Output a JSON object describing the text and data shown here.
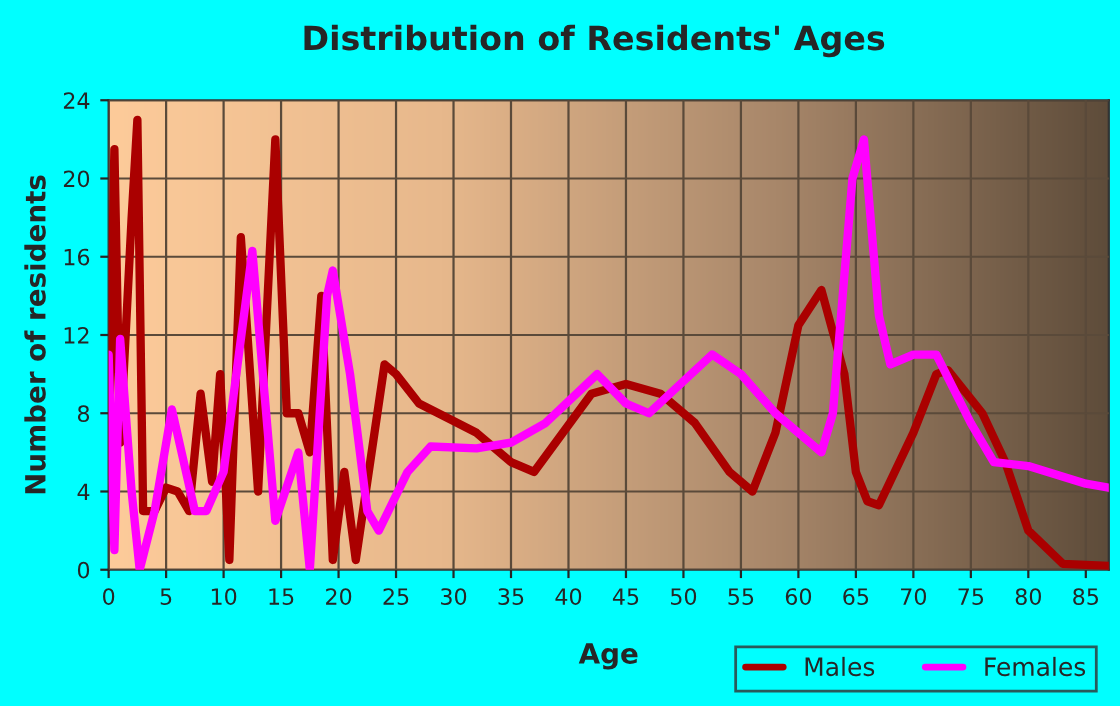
{
  "chart_data": {
    "type": "line",
    "title": "Distribution of Residents' Ages",
    "xlabel": "Age",
    "ylabel": "Number of residents",
    "xlim": [
      0,
      87
    ],
    "xticks": [
      0,
      5,
      10,
      15,
      20,
      25,
      30,
      35,
      40,
      45,
      50,
      55,
      60,
      65,
      70,
      75,
      80,
      85
    ],
    "ylim": [
      0,
      24
    ],
    "yticks": [
      0,
      4,
      8,
      12,
      16,
      20,
      24
    ],
    "grid": true,
    "legend": "bottom right",
    "marker": "none",
    "line_style": "solid",
    "series": [
      {
        "name": "Males",
        "color": "#aa0000",
        "x": [
          0,
          0.5,
          1,
          2,
          2.5,
          3,
          4,
          5,
          6,
          7,
          8,
          9,
          9.7,
          10.5,
          11.5,
          13,
          14.5,
          15.5,
          16.5,
          17.5,
          18.5,
          19.5,
          20.5,
          21.5,
          24,
          25,
          27,
          30,
          32,
          35,
          37,
          42,
          45,
          48,
          51,
          54,
          56,
          58,
          60,
          62,
          64,
          65,
          66,
          67,
          70,
          72,
          73,
          76,
          78,
          80,
          83,
          87
        ],
        "values": [
          5,
          21.5,
          6.5,
          18,
          23,
          3,
          3,
          4.2,
          4,
          3,
          9,
          4.5,
          10,
          0.5,
          17,
          4,
          22,
          8,
          8,
          6,
          14,
          0.5,
          5,
          0.5,
          10.5,
          10,
          8.5,
          7.6,
          7,
          5.5,
          5,
          9,
          9.5,
          9,
          7.5,
          5,
          4,
          7,
          12.5,
          14.3,
          10,
          5,
          3.5,
          3.3,
          7,
          10,
          10.2,
          8,
          5.5,
          2,
          0.3,
          0.2
        ]
      },
      {
        "name": "Females",
        "color": "#ff00ff",
        "x": [
          0,
          0.5,
          1,
          2,
          2.7,
          4,
          5.5,
          7.5,
          8.5,
          10,
          12.5,
          14.5,
          16.5,
          17.5,
          19,
          19.5,
          21,
          22.5,
          23.5,
          26,
          28,
          32,
          35,
          38,
          42.5,
          45,
          47,
          52.5,
          55,
          58,
          61,
          62,
          63,
          64.7,
          65.7,
          67,
          68,
          70,
          72,
          75,
          77,
          80,
          85,
          87
        ],
        "values": [
          11,
          1,
          11.8,
          4,
          0,
          3,
          8.2,
          3,
          3,
          5,
          16.3,
          2.5,
          6,
          0,
          14,
          15.3,
          10,
          3,
          2,
          5,
          6.3,
          6.2,
          6.5,
          7.5,
          10,
          8.5,
          8,
          11,
          10,
          8,
          6.5,
          6,
          8,
          20,
          22,
          13,
          10.5,
          11,
          11,
          7.5,
          5.5,
          5.3,
          4.4,
          4.2
        ]
      }
    ]
  }
}
